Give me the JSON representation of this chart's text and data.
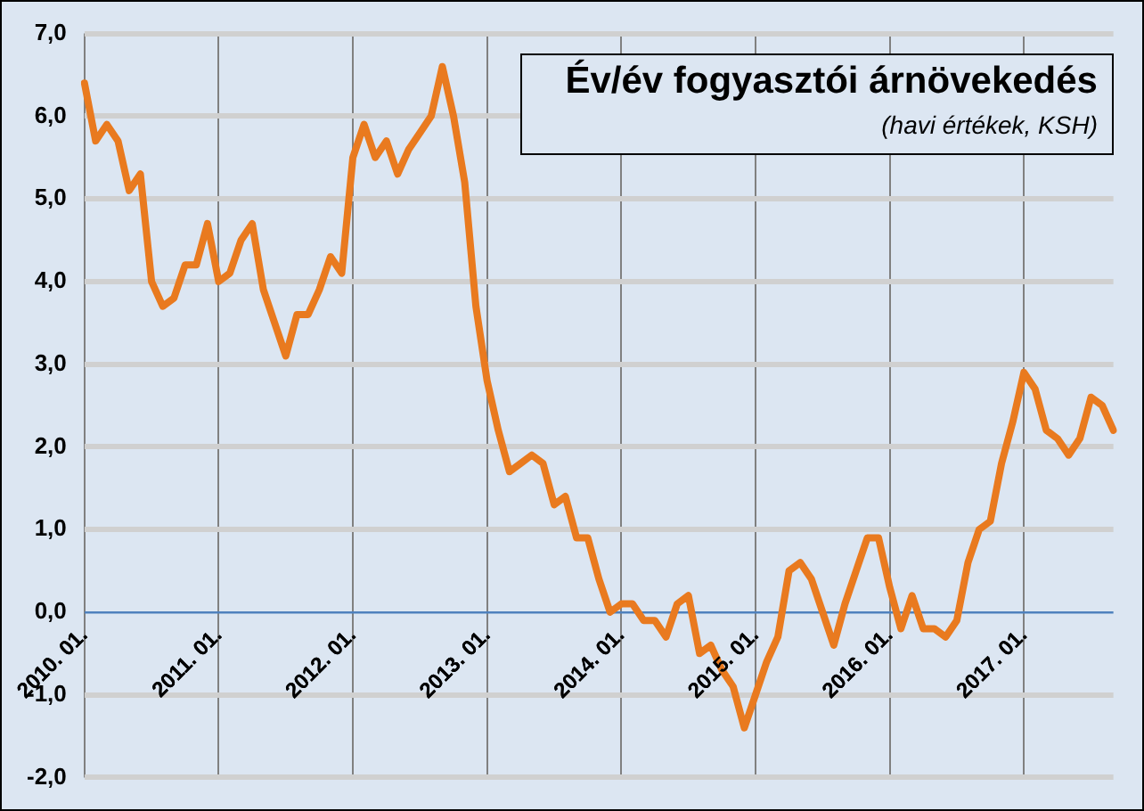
{
  "chart_data": {
    "type": "line",
    "title": "Év/év fogyasztói árnövekedés",
    "subtitle": "(havi értékek, KSH)",
    "categories": [
      "2010. 01.",
      null,
      null,
      null,
      null,
      null,
      null,
      null,
      null,
      null,
      null,
      null,
      "2011. 01.",
      null,
      null,
      null,
      null,
      null,
      null,
      null,
      null,
      null,
      null,
      null,
      "2012. 01.",
      null,
      null,
      null,
      null,
      null,
      null,
      null,
      null,
      null,
      null,
      null,
      "2013. 01.",
      null,
      null,
      null,
      null,
      null,
      null,
      null,
      null,
      null,
      null,
      null,
      "2014. 01.",
      null,
      null,
      null,
      null,
      null,
      null,
      null,
      null,
      null,
      null,
      null,
      "2015. 01.",
      null,
      null,
      null,
      null,
      null,
      null,
      null,
      null,
      null,
      null,
      null,
      "2016. 01.",
      null,
      null,
      null,
      null,
      null,
      null,
      null,
      null,
      null,
      null,
      null,
      "2017. 01.",
      null,
      null,
      null,
      null,
      null,
      null,
      null,
      null
    ],
    "series": [
      {
        "color": "#e97a1f",
        "values": [
          6.4,
          5.7,
          5.9,
          5.7,
          5.1,
          5.3,
          4.0,
          3.7,
          3.8,
          4.2,
          4.2,
          4.7,
          4.0,
          4.1,
          4.5,
          4.7,
          3.9,
          3.5,
          3.1,
          3.6,
          3.6,
          3.9,
          4.3,
          4.1,
          5.5,
          5.9,
          5.5,
          5.7,
          5.3,
          5.6,
          5.8,
          6.0,
          6.6,
          6.0,
          5.2,
          3.7,
          2.8,
          2.2,
          1.7,
          1.8,
          1.9,
          1.8,
          1.3,
          1.4,
          0.9,
          0.9,
          0.4,
          0.0,
          0.1,
          0.1,
          -0.1,
          -0.1,
          -0.3,
          0.1,
          0.2,
          -0.5,
          -0.4,
          -0.7,
          -0.9,
          -1.4,
          -1.0,
          -0.6,
          -0.3,
          0.5,
          0.6,
          0.4,
          0.0,
          -0.4,
          0.1,
          0.5,
          0.9,
          0.9,
          0.3,
          -0.2,
          0.2,
          -0.2,
          -0.2,
          -0.3,
          -0.1,
          0.6,
          1.0,
          1.1,
          1.8,
          2.3,
          2.9,
          2.7,
          2.2,
          2.1,
          1.9,
          2.1,
          2.6,
          2.5,
          2.2
        ]
      }
    ],
    "ylim": [
      -2,
      7
    ],
    "yticks": [
      {
        "value": -2,
        "label": "-2,0"
      },
      {
        "value": -1,
        "label": "-1,0"
      },
      {
        "value": 0,
        "label": "0,0"
      },
      {
        "value": 1,
        "label": "1,0"
      },
      {
        "value": 2,
        "label": "2,0"
      },
      {
        "value": 3,
        "label": "3,0"
      },
      {
        "value": 4,
        "label": "4,0"
      },
      {
        "value": 5,
        "label": "5,0"
      },
      {
        "value": 6,
        "label": "6,0"
      },
      {
        "value": 7,
        "label": "7,0"
      }
    ],
    "grid": true,
    "marker": "none",
    "line_style": "solid"
  }
}
